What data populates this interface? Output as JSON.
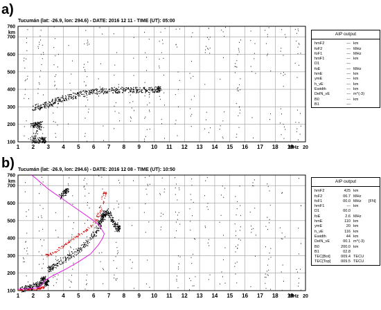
{
  "panels": [
    {
      "label": "a)",
      "title": "Tucumán (lat: -26.9, lon: 294.6) - DATE: 2016 12 11 - TIME (UT): 05:00",
      "aip": {
        "title": "AIP output",
        "rows": [
          {
            "name": "hmF2",
            "value": "---",
            "unit": "km",
            "extra": ""
          },
          {
            "name": "foF2",
            "value": "---",
            "unit": "MHz",
            "extra": ""
          },
          {
            "name": "foF1",
            "value": "---",
            "unit": "MHz",
            "extra": ""
          },
          {
            "name": "hmF1",
            "value": "---",
            "unit": "km",
            "extra": ""
          },
          {
            "name": "D1",
            "value": "---",
            "unit": "",
            "extra": ""
          },
          {
            "name": "foE",
            "value": "---",
            "unit": "MHz",
            "extra": ""
          },
          {
            "name": "hmE",
            "value": "---",
            "unit": "km",
            "extra": ""
          },
          {
            "name": "ymE",
            "value": "---",
            "unit": "km",
            "extra": ""
          },
          {
            "name": "h_vE",
            "value": "---",
            "unit": "km",
            "extra": ""
          },
          {
            "name": "Ewidth",
            "value": "---",
            "unit": "km",
            "extra": ""
          },
          {
            "name": "DelN_vE",
            "value": "---",
            "unit": "m^(-3)",
            "extra": ""
          },
          {
            "name": "B0",
            "value": "---",
            "unit": "km",
            "extra": ""
          },
          {
            "name": "B1",
            "value": "---",
            "unit": "",
            "extra": ""
          }
        ]
      }
    },
    {
      "label": "b)",
      "title": "Tucumán (lat: -26.9, lon: 294.6) - DATE: 2016 12 08 - TIME (UT): 10:50",
      "aip": {
        "title": "AIP output",
        "rows": [
          {
            "name": "hmF2",
            "value": "425",
            "unit": "km",
            "extra": ""
          },
          {
            "name": "foF2",
            "value": "06.7",
            "unit": "MHz",
            "extra": ""
          },
          {
            "name": "foF1",
            "value": "00.0",
            "unit": "MHz",
            "extra": "[FN]"
          },
          {
            "name": "hmF1",
            "value": "---",
            "unit": "km",
            "extra": ""
          },
          {
            "name": "D1",
            "value": "00.0",
            "unit": "",
            "extra": ""
          },
          {
            "name": "foE",
            "value": "2.6",
            "unit": "MHz",
            "extra": ""
          },
          {
            "name": "hmE",
            "value": "110",
            "unit": "km",
            "extra": ""
          },
          {
            "name": "ymE",
            "value": "20",
            "unit": "km",
            "extra": ""
          },
          {
            "name": "h_vE",
            "value": "116",
            "unit": "km",
            "extra": ""
          },
          {
            "name": "Ewidth",
            "value": "44",
            "unit": "km",
            "extra": ""
          },
          {
            "name": "DelN_vE",
            "value": "00.1",
            "unit": "m^(-3)",
            "extra": ""
          },
          {
            "name": "B0",
            "value": "200.0",
            "unit": "km",
            "extra": ""
          },
          {
            "name": "B1",
            "value": "02.8",
            "unit": "",
            "extra": ""
          },
          {
            "name": "TEC[Bot]",
            "value": "009.4",
            "unit": "TECU",
            "extra": ""
          },
          {
            "name": "TEC[Top]",
            "value": "009.5",
            "unit": "TECU",
            "extra": ""
          }
        ]
      }
    }
  ],
  "chart_data": [
    {
      "type": "scatter",
      "title": "Tucumán (lat: -26.9, lon: 294.6) - DATE: 2016 12 11 - TIME (UT): 05:00",
      "xlabel": "MHz",
      "ylabel": "km",
      "xlim": [
        1,
        20
      ],
      "ylim": [
        100,
        760
      ],
      "xticks": [
        1,
        2,
        3,
        4,
        5,
        6,
        7,
        8,
        9,
        10,
        11,
        12,
        13,
        14,
        15,
        16,
        17,
        18,
        19,
        20
      ],
      "yticks": [
        100,
        200,
        300,
        400,
        500,
        600,
        700,
        760
      ],
      "grid": true,
      "series": [
        {
          "color": "#000000",
          "trace": "F trace",
          "points": [
            [
              2.0,
              296
            ],
            [
              2.4,
              302
            ],
            [
              2.8,
              312
            ],
            [
              3.2,
              324
            ],
            [
              3.6,
              338
            ],
            [
              4.0,
              350
            ],
            [
              4.5,
              360
            ],
            [
              5.0,
              372
            ],
            [
              5.5,
              382
            ],
            [
              6.0,
              388
            ],
            [
              6.5,
              392
            ],
            [
              7.0,
              396
            ],
            [
              7.5,
              398
            ],
            [
              8.0,
              398
            ],
            [
              8.5,
              398
            ],
            [
              9.0,
              397
            ],
            [
              9.5,
              398
            ],
            [
              10.0,
              400
            ],
            [
              10.3,
              402
            ]
          ]
        },
        {
          "color": "#000000",
          "trace": "Es trace",
          "points": [
            [
              1.9,
              200
            ],
            [
              2.1,
              200
            ],
            [
              2.3,
              198
            ],
            [
              2.5,
              202
            ],
            [
              1.9,
              112
            ],
            [
              2.2,
              110
            ],
            [
              2.5,
              113
            ],
            [
              2.7,
              111
            ]
          ]
        }
      ]
    },
    {
      "type": "scatter",
      "title": "Tucumán (lat: -26.9, lon: 294.6) - DATE: 2016 12 08 - TIME (UT): 10:50",
      "xlabel": "MHz",
      "ylabel": "km",
      "xlim": [
        1,
        20
      ],
      "ylim": [
        100,
        760
      ],
      "xticks": [
        1,
        2,
        3,
        4,
        5,
        6,
        7,
        8,
        9,
        10,
        11,
        12,
        13,
        14,
        15,
        16,
        17,
        18,
        19,
        20
      ],
      "yticks": [
        100,
        200,
        300,
        400,
        500,
        600,
        700,
        760
      ],
      "grid": true,
      "series": [
        {
          "color": "#000000",
          "trace": "O trace",
          "points": [
            [
              3.0,
              222
            ],
            [
              3.2,
              230
            ],
            [
              3.5,
              250
            ],
            [
              4.0,
              278
            ],
            [
              4.5,
              305
            ],
            [
              5.0,
              335
            ],
            [
              5.5,
              370
            ],
            [
              6.0,
              420
            ],
            [
              6.3,
              470
            ],
            [
              6.5,
              510
            ],
            [
              6.7,
              545
            ]
          ]
        },
        {
          "color": "#000000",
          "trace": "X trace",
          "points": [
            [
              6.3,
              470
            ],
            [
              6.6,
              520
            ],
            [
              6.9,
              560
            ],
            [
              7.1,
              530
            ],
            [
              7.3,
              490
            ],
            [
              7.5,
              470
            ],
            [
              7.6,
              455
            ]
          ]
        },
        {
          "color": "#000000",
          "trace": "E trace",
          "points": [
            [
              1.2,
              110
            ],
            [
              1.5,
              113
            ],
            [
              1.8,
              118
            ],
            [
              2.0,
              125
            ],
            [
              2.3,
              135
            ],
            [
              2.5,
              145
            ],
            [
              2.6,
              160
            ],
            [
              2.7,
              175
            ],
            [
              2.8,
              140
            ],
            [
              2.9,
              150
            ]
          ]
        },
        {
          "color": "#000000",
          "trace": "Es trace",
          "points": [
            [
              3.8,
              640
            ],
            [
              4.0,
              660
            ],
            [
              4.2,
              670
            ]
          ]
        },
        {
          "color": "#d01010",
          "trace": "modeled O trace",
          "points": [
            [
              2.8,
              300
            ],
            [
              3.0,
              308
            ],
            [
              3.5,
              330
            ],
            [
              4.0,
              360
            ],
            [
              4.5,
              390
            ],
            [
              5.0,
              420
            ],
            [
              5.5,
              448
            ],
            [
              6.0,
              490
            ],
            [
              6.3,
              530
            ],
            [
              6.5,
              580
            ],
            [
              6.7,
              660
            ]
          ]
        },
        {
          "color": "#d01010",
          "trace": "E modeled",
          "points": [
            [
              1.0,
              106
            ],
            [
              1.5,
              108
            ],
            [
              2.0,
              110
            ],
            [
              2.4,
              114
            ],
            [
              2.6,
              120
            ]
          ]
        },
        {
          "color": "#e020e0",
          "trace": "profile",
          "points": [
            [
              1.9,
              760
            ],
            [
              2.2,
              740
            ],
            [
              2.6,
              710
            ],
            [
              3.0,
              680
            ],
            [
              3.5,
              650
            ],
            [
              4.0,
              620
            ],
            [
              4.5,
              590
            ],
            [
              5.0,
              560
            ],
            [
              5.5,
              530
            ],
            [
              6.0,
              500
            ],
            [
              6.4,
              470
            ],
            [
              6.6,
              440
            ],
            [
              6.7,
              425
            ],
            [
              6.6,
              400
            ],
            [
              6.3,
              360
            ],
            [
              5.8,
              310
            ],
            [
              5.0,
              265
            ],
            [
              4.2,
              225
            ],
            [
              3.3,
              185
            ],
            [
              2.8,
              160
            ],
            [
              2.6,
              140
            ],
            [
              2.5,
              125
            ],
            [
              2.2,
              115
            ],
            [
              1.5,
              110
            ],
            [
              1.0,
              108
            ]
          ]
        }
      ]
    }
  ]
}
